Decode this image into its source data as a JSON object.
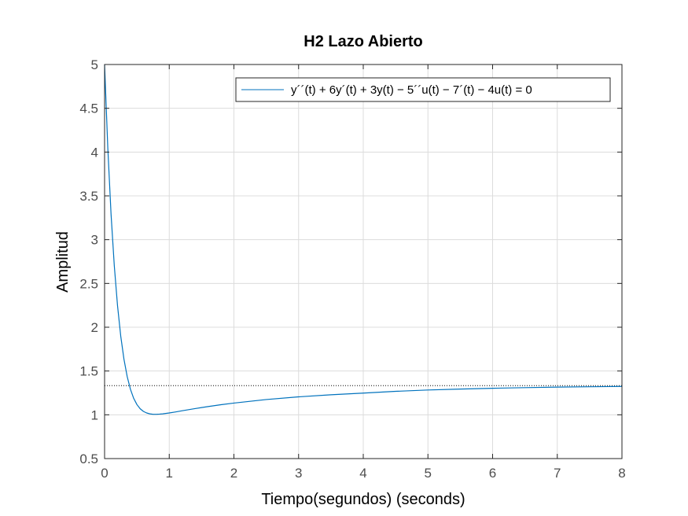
{
  "chart_data": {
    "type": "line",
    "title": "H2 Lazo Abierto",
    "xlabel": "Tiempo(segundos) (seconds)",
    "ylabel": "Amplitud",
    "xlim": [
      0,
      8
    ],
    "ylim": [
      0.5,
      5
    ],
    "xticks": [
      0,
      1,
      2,
      3,
      4,
      5,
      6,
      7,
      8
    ],
    "xtick_labels": [
      "0",
      "1",
      "2",
      "3",
      "4",
      "5",
      "6",
      "7",
      "8"
    ],
    "yticks": [
      0.5,
      1,
      1.5,
      2,
      2.5,
      3,
      3.5,
      4,
      4.5,
      5
    ],
    "ytick_labels": [
      "0.5",
      "1",
      "1.5",
      "2",
      "2.5",
      "3",
      "3.5",
      "4",
      "4.5",
      "5"
    ],
    "grid": true,
    "legend_position": "top-right",
    "series": [
      {
        "name": "y´´(t) + 6y´(t) + 3y(t) − 5´´u(t) − 7´(t) − 4u(t) = 0",
        "color": "#0072bd",
        "x": [
          0,
          0.05,
          0.1,
          0.15,
          0.2,
          0.25,
          0.3,
          0.35,
          0.4,
          0.45,
          0.5,
          0.55,
          0.6,
          0.65,
          0.7,
          0.75,
          0.8,
          0.85,
          0.9,
          1.0,
          1.1,
          1.2,
          1.4,
          1.6,
          1.8,
          2.0,
          2.5,
          3.0,
          3.5,
          4.0,
          4.5,
          5.0,
          5.5,
          6.0,
          6.5,
          7.0,
          7.5,
          8.0
        ],
        "y": [
          5.0,
          4.046,
          3.293,
          2.704,
          2.248,
          1.898,
          1.633,
          1.435,
          1.291,
          1.188,
          1.117,
          1.069,
          1.039,
          1.021,
          1.011,
          1.006,
          1.006,
          1.008,
          1.011,
          1.021,
          1.033,
          1.046,
          1.071,
          1.094,
          1.115,
          1.134,
          1.174,
          1.205,
          1.229,
          1.248,
          1.268,
          1.283,
          1.294,
          1.303,
          1.31,
          1.316,
          1.32,
          1.324
        ]
      }
    ],
    "reference_line": {
      "y": 1.3333,
      "style": "dotted",
      "color": "#000000"
    }
  }
}
